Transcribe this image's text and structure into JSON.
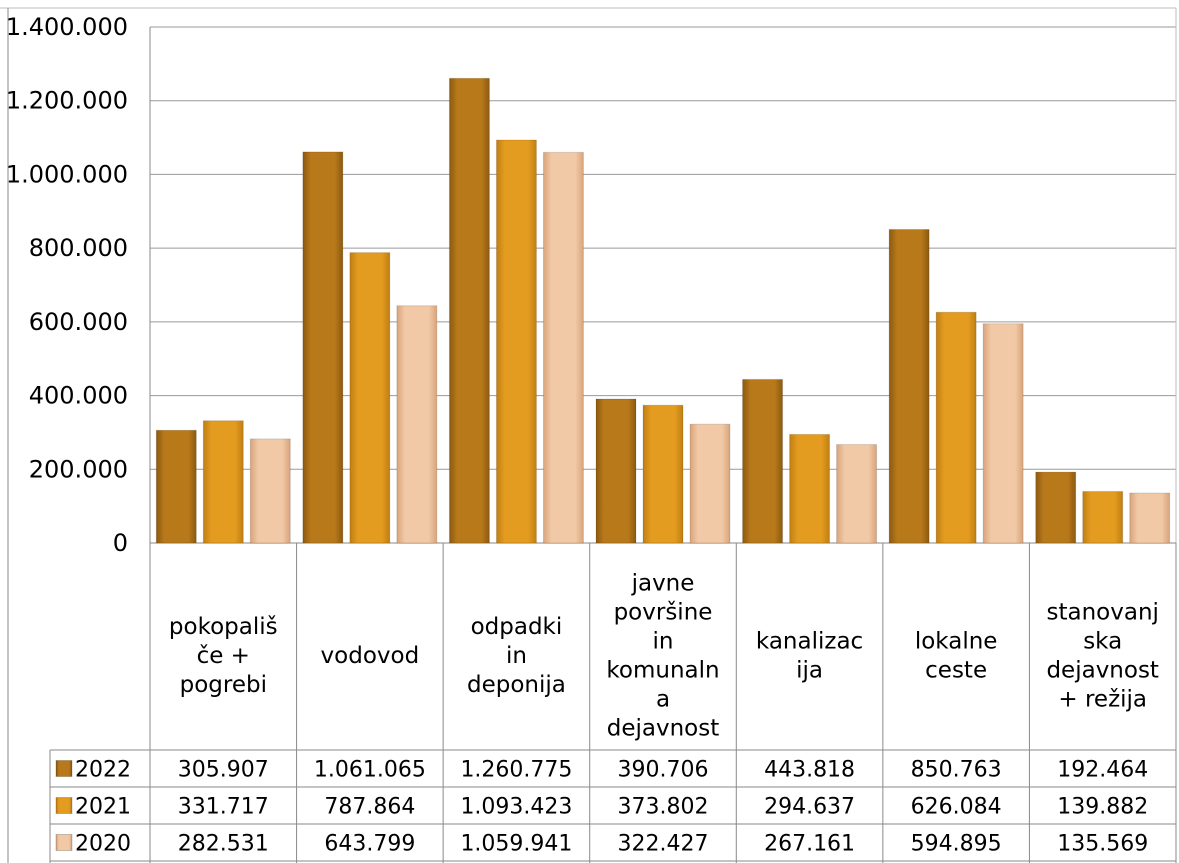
{
  "chart_data": {
    "type": "bar",
    "categories": [
      [
        "pokopališ",
        "če +",
        "pogrebi"
      ],
      [
        "vodovod"
      ],
      [
        "odpadki",
        "in",
        "deponija"
      ],
      [
        "javne",
        "površine",
        "in",
        "komunaln",
        "a",
        "dejavnost"
      ],
      [
        "kanalizac",
        "ija"
      ],
      [
        "lokalne",
        "ceste"
      ],
      [
        "stanovanj",
        "ska",
        "dejavnost",
        "+  režija"
      ]
    ],
    "series": [
      {
        "name": "2022",
        "color": "#b8791a",
        "values": [
          305907,
          1061065,
          1260775,
          390706,
          443818,
          850763,
          192464
        ],
        "labels": [
          "305.907",
          "1.061.065",
          "1.260.775",
          "390.706",
          "443.818",
          "850.763",
          "192.464"
        ]
      },
      {
        "name": "2021",
        "color": "#e39b20",
        "values": [
          331717,
          787864,
          1093423,
          373802,
          294637,
          626084,
          139882
        ],
        "labels": [
          "331.717",
          "787.864",
          "1.093.423",
          "373.802",
          "294.637",
          "626.084",
          "139.882"
        ]
      },
      {
        "name": "2020",
        "color": "#eec3a0",
        "values": [
          282531,
          643799,
          1059941,
          322427,
          267161,
          594895,
          135569
        ],
        "labels": [
          "282.531",
          "643.799",
          "1.059.941",
          "322.427",
          "267.161",
          "594.895",
          "135.569"
        ]
      }
    ],
    "ylim": [
      0,
      1400000
    ],
    "yticks": [
      0,
      200000,
      400000,
      600000,
      800000,
      1000000,
      1200000,
      1400000
    ],
    "ytick_labels": [
      "0",
      "200.000",
      "400.000",
      "600.000",
      "800.000",
      "1.000.000",
      "1.200.000",
      "1.400.000"
    ],
    "grid": true,
    "legend_placement": "data-table-left"
  }
}
